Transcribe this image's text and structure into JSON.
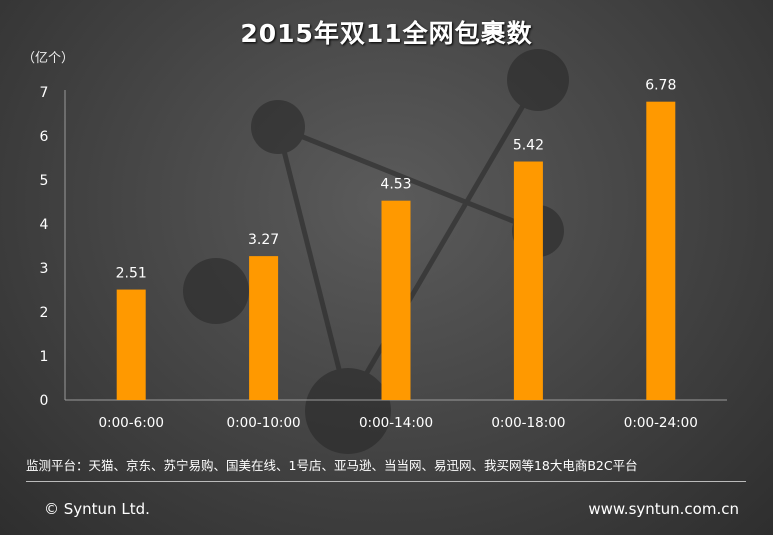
{
  "header": {
    "title": "2015年双11全网包裹数",
    "unit_label": "（亿个）"
  },
  "footer": {
    "note": "监测平台：天猫、京东、苏宁易购、国美在线、1号店、亚马逊、当当网、易迅网、我买网等18大电商B2C平台",
    "copyright": "© Syntun Ltd.",
    "website": "www.syntun.com.cn"
  },
  "chart_data": {
    "type": "bar",
    "title": "2015年双11全网包裹数",
    "ylabel": "（亿个）",
    "xlabel": "",
    "categories": [
      "0:00-6:00",
      "0:00-10:00",
      "0:00-14:00",
      "0:00-18:00",
      "0:00-24:00"
    ],
    "values": [
      2.51,
      3.27,
      4.53,
      5.42,
      6.78
    ],
    "value_labels": [
      "2.51",
      "3.27",
      "4.53",
      "5.42",
      "6.78"
    ],
    "ylim": [
      0,
      7
    ],
    "yticks": [
      "0",
      "1",
      "2",
      "3",
      "4",
      "5",
      "6",
      "7"
    ],
    "grid": false,
    "bar_color": "#ff9900"
  }
}
